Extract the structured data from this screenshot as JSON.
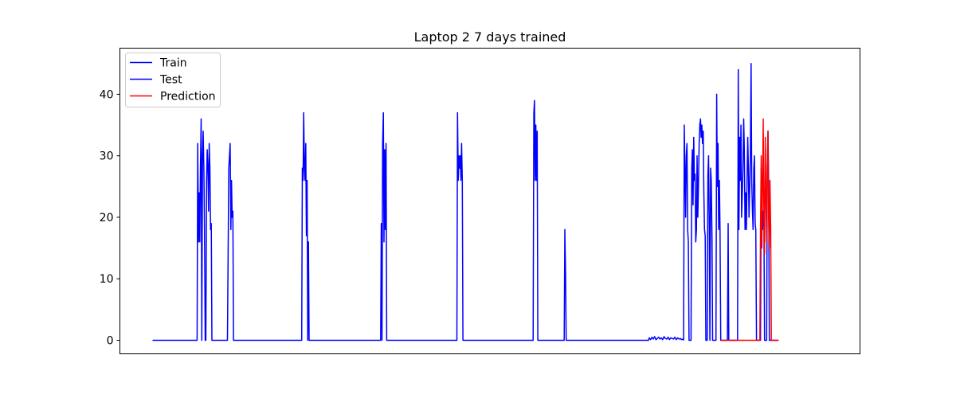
{
  "chart_data": {
    "type": "line",
    "title": "Laptop 2 7 days trained",
    "xlabel": "",
    "ylabel": "",
    "x_ticks_shown": false,
    "ylim": [
      -2.2,
      47.5
    ],
    "yticks": [
      0,
      10,
      20,
      30,
      40
    ],
    "xlim": [
      0,
      1000
    ],
    "grid": false,
    "legend": {
      "placement": "top-left",
      "entries": [
        "Train",
        "Test",
        "Prediction"
      ]
    },
    "series": [
      {
        "name": "Train",
        "color": "#0000ff",
        "x": [
          0,
          66,
          67,
          68,
          69,
          70,
          71,
          72,
          73,
          74,
          75,
          76,
          77,
          78,
          79,
          80,
          81,
          82,
          83,
          84,
          85,
          86,
          87,
          88,
          89,
          90,
          91,
          92,
          97,
          98,
          99,
          100,
          101,
          102,
          103,
          111,
          113,
          114,
          115,
          116,
          117,
          118,
          119,
          120,
          221,
          222,
          223,
          224,
          225,
          226,
          227,
          228,
          229,
          230,
          231,
          232,
          233,
          234,
          235,
          338,
          339,
          340,
          341,
          342,
          343,
          344,
          345,
          346,
          347,
          350,
          451,
          452,
          453,
          454,
          455,
          456,
          457,
          458,
          459,
          460,
          564,
          565,
          566,
          567,
          568,
          569,
          570,
          571,
          610,
          611,
          612,
          613,
          735,
          736,
          738,
          740,
          742,
          744,
          746,
          748,
          750,
          752,
          754,
          756,
          758,
          760,
          762,
          764,
          766,
          768,
          770,
          772,
          774,
          776,
          778,
          780,
          782,
          784,
          786,
          787
        ],
        "y": [
          0,
          0,
          32,
          16,
          24,
          16,
          28,
          36,
          0,
          30,
          34,
          28,
          18,
          0,
          0,
          26,
          31,
          28,
          21,
          32,
          28,
          18,
          19,
          0,
          0,
          0,
          0,
          0,
          0,
          0,
          0,
          0,
          0,
          0,
          0,
          0,
          28,
          30,
          32,
          18,
          26,
          20,
          21,
          0,
          0,
          28,
          26,
          37,
          28,
          26,
          32,
          17,
          26,
          0,
          16,
          0,
          0,
          0,
          0,
          0,
          19,
          0,
          32,
          37,
          16,
          31,
          18,
          32,
          0,
          0,
          0,
          37,
          26,
          30,
          28,
          30,
          26,
          32,
          26,
          0,
          0,
          37,
          39,
          26,
          35,
          26,
          34,
          0,
          0,
          18,
          11,
          0,
          0,
          0.4,
          0.1,
          0.5,
          0.2,
          0.6,
          0.1,
          0.3,
          0.5,
          0.2,
          0.4,
          0.1,
          0.6,
          0.3,
          0.2,
          0.5,
          0.1,
          0.4,
          0.3,
          0.2,
          0.5,
          0.1,
          0.4,
          0.2,
          0.3,
          0.1,
          0.2,
          0
        ]
      },
      {
        "name": "Test",
        "color": "#0000ff",
        "x": [
          787,
          788,
          789,
          790,
          791,
          792,
          793,
          794,
          795,
          796,
          797,
          798,
          799,
          800,
          801,
          802,
          803,
          804,
          805,
          806,
          807,
          808,
          809,
          810,
          811,
          812,
          813,
          814,
          815,
          816,
          817,
          818,
          819,
          820,
          821,
          822,
          823,
          824,
          825,
          826,
          827,
          828,
          829,
          830,
          831,
          832,
          833,
          834,
          835,
          836,
          837,
          838,
          839,
          840,
          841,
          842,
          843,
          844,
          845,
          846,
          847,
          848,
          849,
          850,
          851,
          852,
          853,
          854,
          855,
          856,
          857,
          858,
          859,
          860,
          861,
          862,
          863,
          864,
          865,
          866,
          867,
          868,
          869,
          870,
          871,
          872,
          873,
          874,
          875,
          876,
          877,
          878,
          879,
          880,
          881,
          882,
          883,
          884,
          885,
          886,
          887,
          888,
          889,
          890,
          891,
          892,
          893,
          894,
          895,
          896,
          897,
          898,
          899,
          900,
          901,
          902,
          903,
          904,
          905,
          906,
          907,
          908,
          909,
          910,
          911,
          912,
          913,
          914,
          915,
          916,
          917,
          918,
          919,
          920,
          921,
          922,
          923,
          924,
          925,
          926,
          927
        ],
        "y": [
          0,
          35,
          28,
          20,
          30,
          32,
          18,
          16,
          0,
          0,
          0,
          0,
          28,
          31,
          22,
          33,
          26,
          27,
          16,
          18,
          30,
          20,
          25,
          32,
          35,
          36,
          33,
          35,
          32,
          34,
          24,
          18,
          17,
          0,
          0,
          0,
          27,
          30,
          19,
          0,
          28,
          26,
          17,
          0,
          0,
          0,
          0,
          0,
          0,
          40,
          25,
          32,
          18,
          26,
          18,
          0,
          0,
          0,
          0,
          0,
          0,
          0,
          0,
          0,
          0,
          0,
          19,
          0,
          0,
          0,
          0,
          0,
          0,
          0,
          0,
          0,
          0,
          0,
          0,
          0,
          0,
          44,
          18,
          33,
          26,
          35,
          20,
          24,
          28,
          36,
          31,
          18,
          24,
          18,
          26,
          33,
          28,
          20,
          25,
          30,
          45,
          26,
          21,
          18,
          28,
          30,
          19,
          18,
          0,
          0,
          0,
          0,
          0,
          0,
          0,
          28,
          26,
          18,
          21,
          19,
          0,
          0,
          0,
          0,
          28,
          34,
          26,
          0,
          0,
          0,
          0,
          0,
          0,
          0,
          0,
          0,
          0,
          0,
          0,
          0,
          0
        ]
      },
      {
        "name": "Prediction",
        "color": "#ff0000",
        "x": [
          842,
          900,
          901,
          902,
          903,
          904,
          905,
          906,
          907,
          908,
          909,
          910,
          911,
          912,
          913,
          914,
          915,
          916,
          917,
          918,
          919,
          920,
          921,
          922,
          923,
          924,
          925,
          926,
          927,
          928
        ],
        "y": [
          0,
          0,
          18,
          30,
          15,
          25,
          36,
          20,
          14,
          33,
          24,
          16,
          28,
          34,
          20,
          15,
          26,
          18,
          0,
          0,
          0,
          0,
          0,
          0,
          0,
          0,
          0,
          0,
          0,
          0
        ]
      }
    ]
  }
}
